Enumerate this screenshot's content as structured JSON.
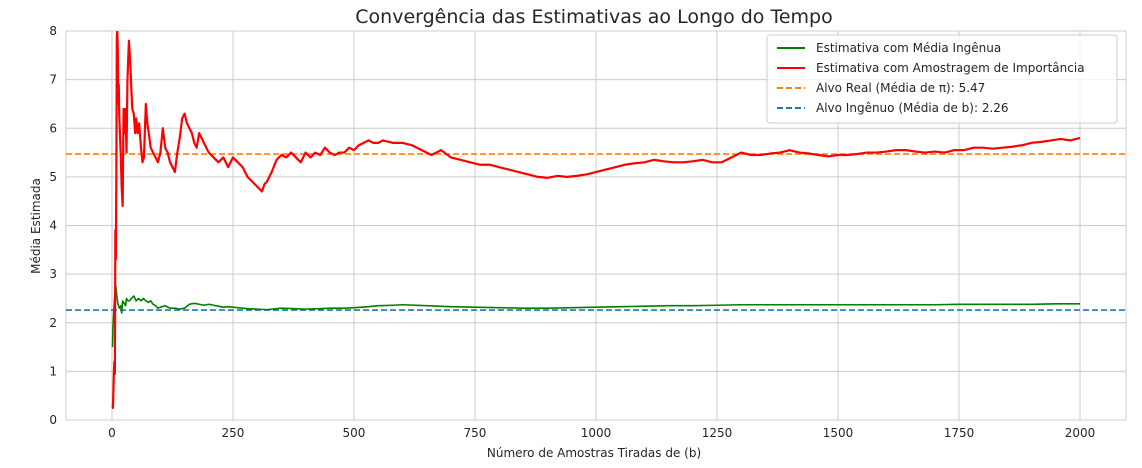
{
  "chart_data": {
    "type": "line",
    "title": "Convergência das Estimativas ao Longo do Tempo",
    "xlabel": "Número de Amostras Tiradas de (b)",
    "ylabel": "Média Estimada",
    "xlim": [
      -95,
      2095
    ],
    "ylim": [
      0,
      8
    ],
    "xticks": [
      0,
      250,
      500,
      750,
      1000,
      1250,
      1500,
      1750,
      2000
    ],
    "yticks": [
      0,
      1,
      2,
      3,
      4,
      5,
      6,
      7,
      8
    ],
    "grid": true,
    "legend_position": "top-right",
    "series": [
      {
        "name": "Estimativa com Média Ingênua",
        "color": "#008000",
        "style": "solid",
        "x": [
          1,
          2,
          4,
          6,
          8,
          10,
          12,
          15,
          18,
          20,
          22,
          25,
          28,
          30,
          33,
          36,
          40,
          45,
          50,
          55,
          60,
          65,
          70,
          75,
          80,
          85,
          90,
          95,
          100,
          110,
          120,
          130,
          140,
          150,
          160,
          170,
          180,
          190,
          200,
          210,
          220,
          230,
          240,
          250,
          260,
          270,
          280,
          300,
          320,
          350,
          380,
          400,
          430,
          450,
          480,
          500,
          530,
          550,
          580,
          600,
          650,
          700,
          750,
          800,
          850,
          900,
          950,
          1000,
          1050,
          1100,
          1150,
          1200,
          1250,
          1300,
          1350,
          1400,
          1450,
          1500,
          1550,
          1600,
          1650,
          1700,
          1750,
          1800,
          1850,
          1900,
          1950,
          2000
        ],
        "y": [
          1.5,
          1.9,
          2.3,
          2.6,
          2.75,
          2.55,
          2.4,
          2.3,
          2.35,
          2.2,
          2.45,
          2.4,
          2.35,
          2.5,
          2.45,
          2.45,
          2.5,
          2.55,
          2.45,
          2.5,
          2.45,
          2.5,
          2.45,
          2.42,
          2.45,
          2.38,
          2.35,
          2.3,
          2.32,
          2.35,
          2.3,
          2.3,
          2.28,
          2.3,
          2.38,
          2.4,
          2.38,
          2.36,
          2.38,
          2.36,
          2.34,
          2.32,
          2.33,
          2.32,
          2.31,
          2.3,
          2.29,
          2.28,
          2.27,
          2.3,
          2.29,
          2.28,
          2.29,
          2.3,
          2.3,
          2.31,
          2.33,
          2.35,
          2.36,
          2.37,
          2.35,
          2.33,
          2.32,
          2.31,
          2.3,
          2.3,
          2.31,
          2.32,
          2.33,
          2.34,
          2.35,
          2.35,
          2.36,
          2.37,
          2.37,
          2.37,
          2.37,
          2.37,
          2.37,
          2.37,
          2.37,
          2.37,
          2.38,
          2.38,
          2.38,
          2.38,
          2.39,
          2.39
        ]
      },
      {
        "name": "Estimativa com Amostragem de Importância",
        "color": "#ff0000",
        "style": "solid",
        "x": [
          1,
          2,
          3,
          4,
          5,
          6,
          7,
          8,
          9,
          10,
          11,
          12,
          13,
          14,
          15,
          16,
          18,
          20,
          22,
          24,
          26,
          28,
          30,
          32,
          35,
          38,
          40,
          42,
          45,
          48,
          50,
          53,
          56,
          60,
          63,
          66,
          70,
          73,
          76,
          80,
          85,
          90,
          95,
          100,
          105,
          110,
          115,
          120,
          125,
          130,
          135,
          140,
          145,
          150,
          155,
          160,
          165,
          170,
          175,
          180,
          185,
          190,
          195,
          200,
          210,
          220,
          230,
          240,
          250,
          260,
          270,
          280,
          290,
          300,
          310,
          315,
          320,
          330,
          340,
          350,
          360,
          370,
          380,
          390,
          400,
          410,
          420,
          430,
          440,
          450,
          460,
          470,
          480,
          490,
          500,
          510,
          520,
          530,
          540,
          550,
          560,
          580,
          600,
          620,
          640,
          660,
          680,
          700,
          720,
          740,
          760,
          780,
          800,
          820,
          840,
          860,
          880,
          900,
          920,
          940,
          960,
          980,
          1000,
          1020,
          1040,
          1060,
          1080,
          1100,
          1120,
          1140,
          1160,
          1180,
          1200,
          1220,
          1240,
          1260,
          1280,
          1300,
          1320,
          1340,
          1360,
          1380,
          1400,
          1420,
          1440,
          1460,
          1480,
          1500,
          1520,
          1540,
          1560,
          1580,
          1600,
          1620,
          1640,
          1660,
          1680,
          1700,
          1720,
          1740,
          1760,
          1780,
          1800,
          1820,
          1840,
          1860,
          1880,
          1900,
          1920,
          1940,
          1960,
          1980,
          2000
        ],
        "y": [
          0.3,
          0.25,
          0.6,
          1.0,
          1.2,
          0.95,
          3.9,
          3.3,
          5.0,
          7.9,
          8.0,
          7.6,
          6.5,
          6.9,
          6.3,
          6.0,
          5.5,
          4.8,
          4.4,
          6.4,
          5.9,
          6.4,
          5.5,
          7.0,
          7.8,
          7.3,
          6.8,
          6.4,
          6.3,
          5.9,
          6.2,
          5.9,
          6.1,
          5.6,
          5.3,
          5.4,
          6.5,
          6.1,
          5.9,
          5.6,
          5.5,
          5.4,
          5.3,
          5.5,
          6.0,
          5.6,
          5.5,
          5.3,
          5.2,
          5.1,
          5.5,
          5.8,
          6.2,
          6.3,
          6.1,
          6.0,
          5.9,
          5.7,
          5.6,
          5.9,
          5.8,
          5.7,
          5.6,
          5.5,
          5.4,
          5.3,
          5.4,
          5.2,
          5.4,
          5.3,
          5.2,
          5.0,
          4.9,
          4.8,
          4.7,
          4.85,
          4.9,
          5.1,
          5.35,
          5.45,
          5.4,
          5.5,
          5.4,
          5.3,
          5.5,
          5.4,
          5.5,
          5.45,
          5.6,
          5.5,
          5.45,
          5.5,
          5.5,
          5.6,
          5.55,
          5.65,
          5.7,
          5.75,
          5.7,
          5.7,
          5.75,
          5.7,
          5.7,
          5.65,
          5.55,
          5.45,
          5.55,
          5.4,
          5.35,
          5.3,
          5.25,
          5.25,
          5.2,
          5.15,
          5.1,
          5.05,
          5.0,
          4.98,
          5.02,
          5.0,
          5.02,
          5.05,
          5.1,
          5.15,
          5.2,
          5.25,
          5.28,
          5.3,
          5.35,
          5.32,
          5.3,
          5.3,
          5.32,
          5.35,
          5.3,
          5.3,
          5.4,
          5.5,
          5.45,
          5.45,
          5.48,
          5.5,
          5.55,
          5.5,
          5.48,
          5.45,
          5.42,
          5.45,
          5.45,
          5.47,
          5.5,
          5.5,
          5.52,
          5.55,
          5.55,
          5.52,
          5.5,
          5.52,
          5.5,
          5.55,
          5.55,
          5.6,
          5.6,
          5.58,
          5.6,
          5.62,
          5.65,
          5.7,
          5.72,
          5.75,
          5.78,
          5.75,
          5.8
        ]
      },
      {
        "name": "Alvo Real (Média de π): 5.47",
        "color": "#ff7f0e",
        "style": "dashed",
        "hline": 5.47
      },
      {
        "name": "Alvo Ingênuo (Média de b): 2.26",
        "color": "#1f77b4",
        "style": "dashed",
        "hline": 2.26
      }
    ]
  }
}
